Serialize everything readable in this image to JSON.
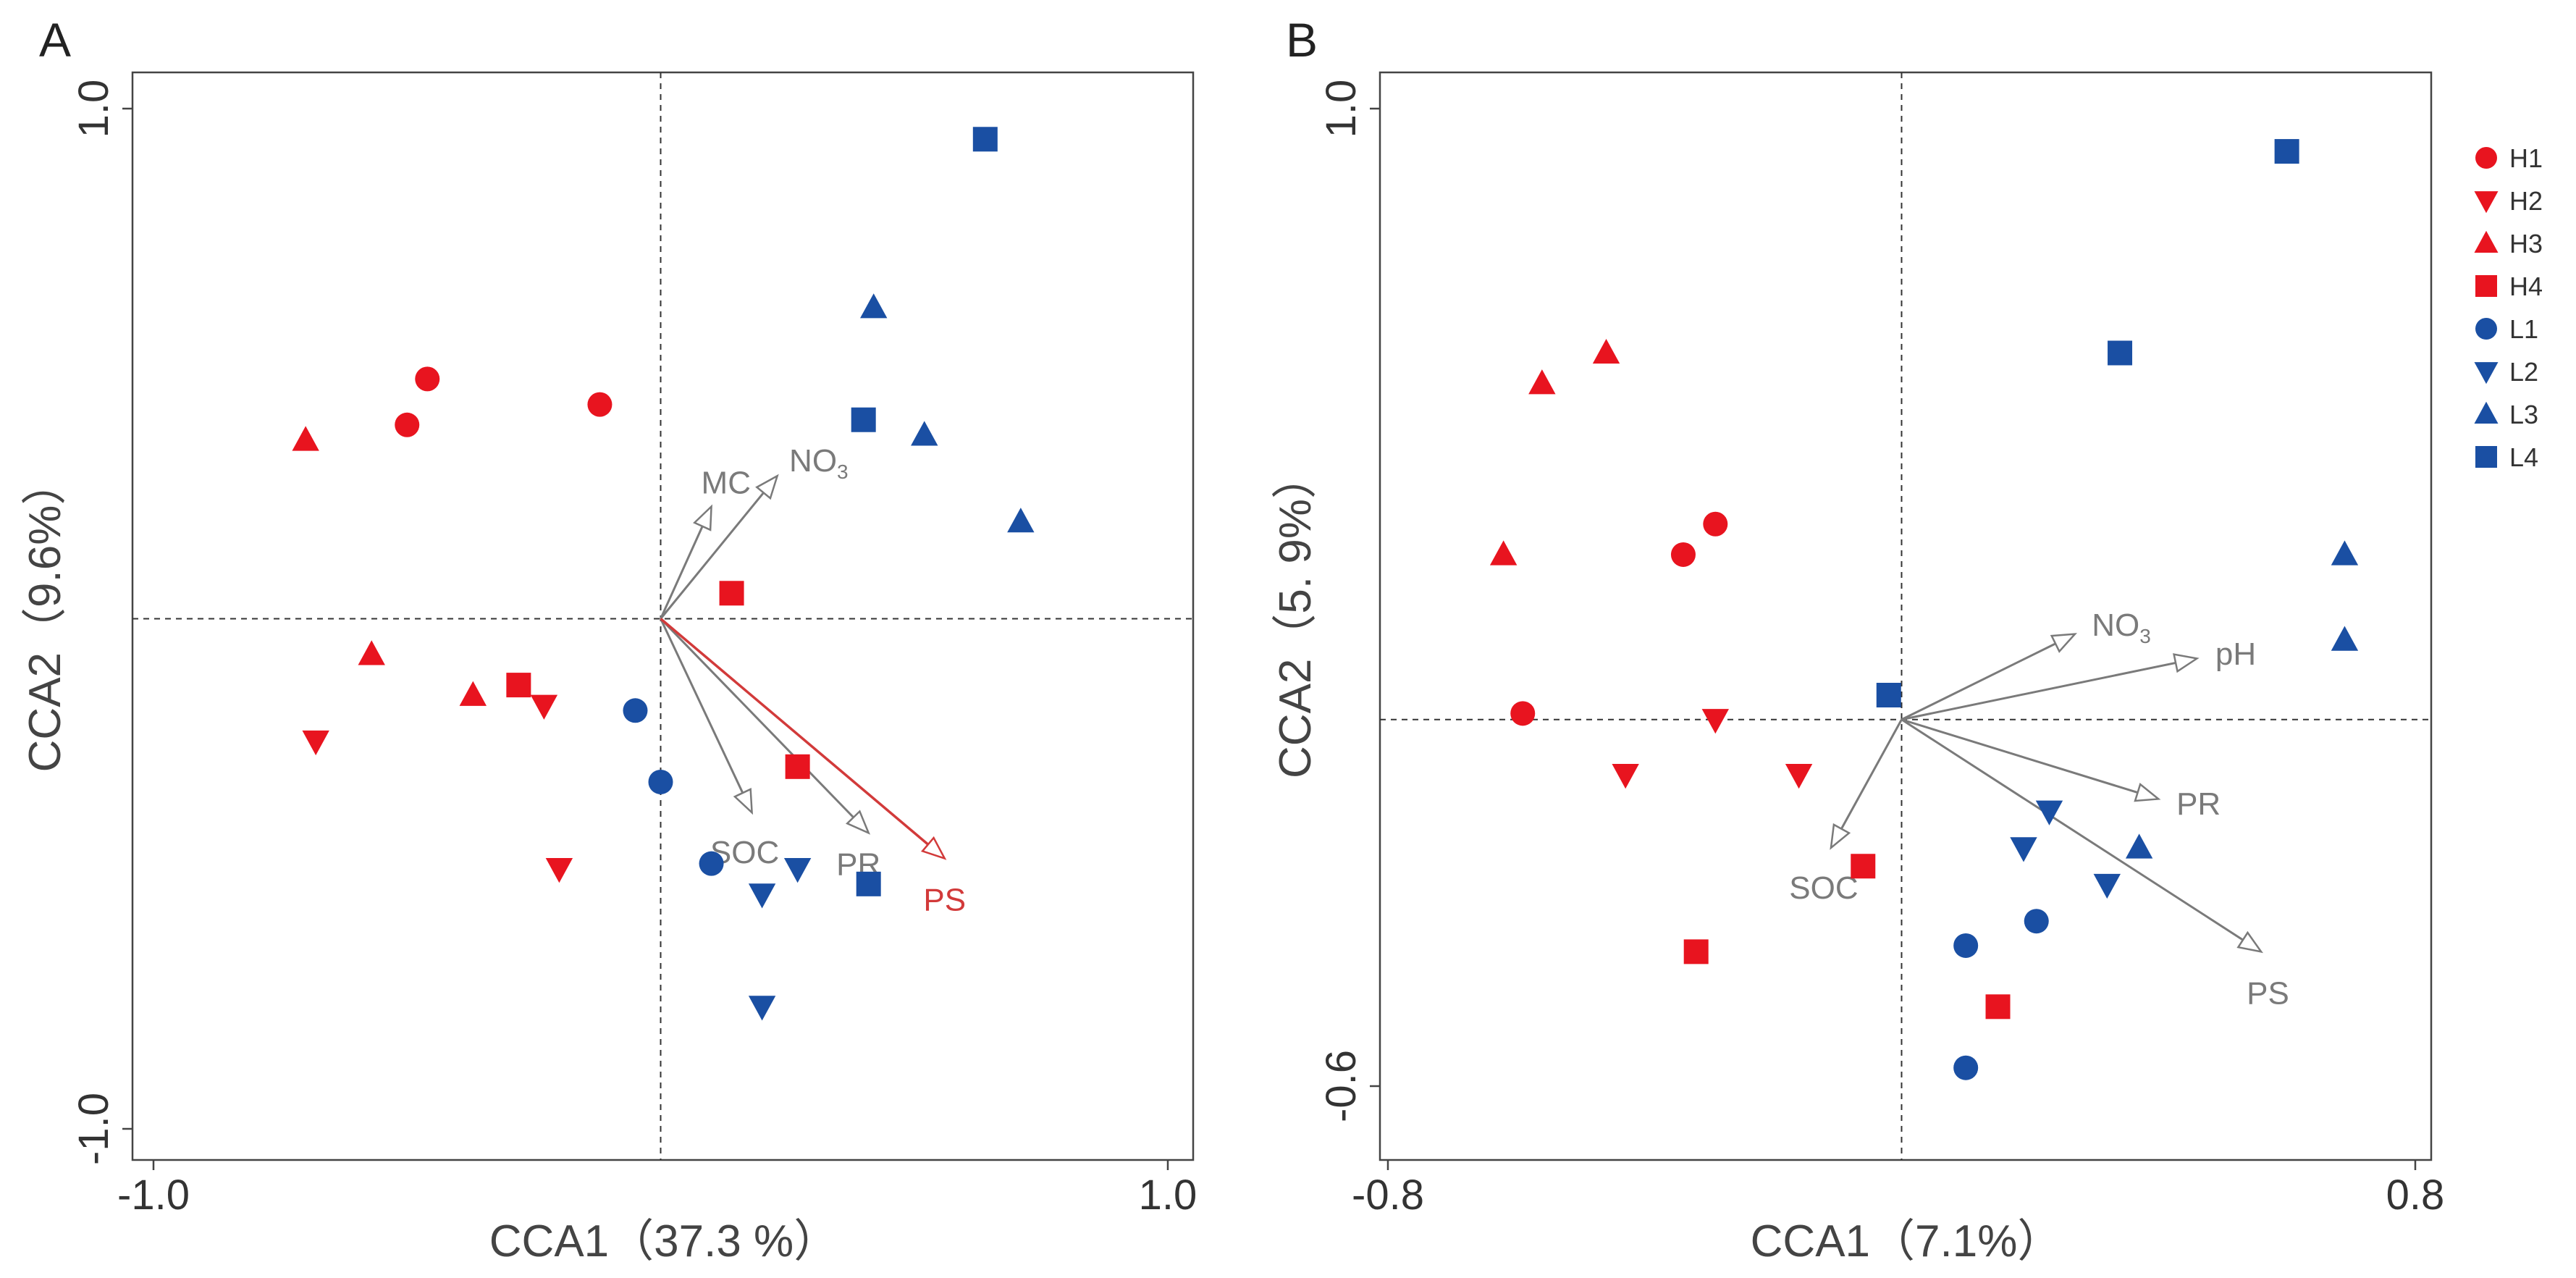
{
  "colors": {
    "H": "#e8141f",
    "L": "#1a4fa3",
    "arrow": "#7a7a7a",
    "arrow_highlight": "#d23a3a",
    "frame": "#444444"
  },
  "legend": {
    "entries": [
      {
        "label": "H1",
        "group": "H",
        "shape": "circle"
      },
      {
        "label": "H2",
        "group": "H",
        "shape": "triangle-down"
      },
      {
        "label": "H3",
        "group": "H",
        "shape": "triangle-up"
      },
      {
        "label": "H4",
        "group": "H",
        "shape": "square"
      },
      {
        "label": "L1",
        "group": "L",
        "shape": "circle"
      },
      {
        "label": "L2",
        "group": "L",
        "shape": "triangle-down"
      },
      {
        "label": "L3",
        "group": "L",
        "shape": "triangle-up"
      },
      {
        "label": "L4",
        "group": "L",
        "shape": "square"
      }
    ]
  },
  "chart_data": [
    {
      "type": "scatter",
      "panel": "A",
      "xlabel": "CCA1（37.3 %）",
      "ylabel": "CCA2（9.6%）",
      "xlim": [
        -1.0,
        1.0
      ],
      "ylim": [
        -1.0,
        1.0
      ],
      "xticks": [
        "-1.0",
        "1.0"
      ],
      "yticks": [
        "-1.0",
        "1.0"
      ],
      "origin_lines": "dashed",
      "series": [
        {
          "name": "H1",
          "points": [
            [
              -0.5,
              0.38
            ],
            [
              -0.46,
              0.47
            ],
            [
              -0.12,
              0.42
            ]
          ]
        },
        {
          "name": "H2",
          "points": [
            [
              -0.68,
              -0.24
            ],
            [
              -0.23,
              -0.17
            ],
            [
              -0.2,
              -0.49
            ]
          ]
        },
        {
          "name": "H3",
          "points": [
            [
              -0.7,
              0.35
            ],
            [
              -0.57,
              -0.07
            ],
            [
              -0.37,
              -0.15
            ]
          ]
        },
        {
          "name": "H4",
          "points": [
            [
              -0.28,
              -0.13
            ],
            [
              0.14,
              0.05
            ],
            [
              0.27,
              -0.29
            ]
          ]
        },
        {
          "name": "L1",
          "points": [
            [
              -0.05,
              -0.18
            ],
            [
              0.0,
              -0.32
            ],
            [
              0.1,
              -0.48
            ]
          ]
        },
        {
          "name": "L2",
          "points": [
            [
              0.2,
              -0.54
            ],
            [
              0.27,
              -0.49
            ],
            [
              0.2,
              -0.76
            ]
          ]
        },
        {
          "name": "L3",
          "points": [
            [
              0.42,
              0.61
            ],
            [
              0.52,
              0.36
            ],
            [
              0.71,
              0.19
            ]
          ]
        },
        {
          "name": "L4",
          "points": [
            [
              0.64,
              0.94
            ],
            [
              0.4,
              0.39
            ],
            [
              0.41,
              -0.52
            ]
          ]
        }
      ],
      "arrows": [
        {
          "label": "MC",
          "x": 0.1,
          "y": 0.22,
          "highlight": false
        },
        {
          "label": "NO3",
          "x": 0.23,
          "y": 0.28,
          "highlight": false
        },
        {
          "label": "SOC",
          "x": 0.18,
          "y": -0.38,
          "highlight": false
        },
        {
          "label": "PR",
          "x": 0.41,
          "y": -0.42,
          "highlight": false
        },
        {
          "label": "PS",
          "x": 0.56,
          "y": -0.47,
          "highlight": true
        }
      ]
    },
    {
      "type": "scatter",
      "panel": "B",
      "xlabel": "CCA1（7.1%）",
      "ylabel": "CCA2（5. 9%）",
      "xlim": [
        -0.8,
        0.8
      ],
      "ylim": [
        -0.6,
        1.0
      ],
      "xticks": [
        "-0.8",
        "0.8"
      ],
      "yticks": [
        "-0.6",
        "1.0"
      ],
      "origin_lines": "dashed",
      "series": [
        {
          "name": "H1",
          "points": [
            [
              -0.59,
              0.01
            ],
            [
              -0.34,
              0.27
            ],
            [
              -0.29,
              0.32
            ]
          ]
        },
        {
          "name": "H2",
          "points": [
            [
              -0.29,
              0.0
            ],
            [
              -0.43,
              -0.09
            ],
            [
              -0.16,
              -0.09
            ]
          ]
        },
        {
          "name": "H3",
          "points": [
            [
              -0.56,
              0.55
            ],
            [
              -0.46,
              0.6
            ],
            [
              -0.62,
              0.27
            ]
          ]
        },
        {
          "name": "H4",
          "points": [
            [
              -0.06,
              -0.24
            ],
            [
              -0.32,
              -0.38
            ],
            [
              0.15,
              -0.47
            ]
          ]
        },
        {
          "name": "L1",
          "points": [
            [
              0.1,
              -0.37
            ],
            [
              0.21,
              -0.33
            ],
            [
              0.1,
              -0.57
            ]
          ]
        },
        {
          "name": "L2",
          "points": [
            [
              0.23,
              -0.15
            ],
            [
              0.19,
              -0.21
            ],
            [
              0.32,
              -0.27
            ]
          ]
        },
        {
          "name": "L3",
          "points": [
            [
              0.37,
              -0.21
            ],
            [
              0.69,
              0.27
            ],
            [
              0.69,
              0.13
            ]
          ]
        },
        {
          "name": "L4",
          "points": [
            [
              0.6,
              0.93
            ],
            [
              0.34,
              0.6
            ],
            [
              -0.02,
              0.04
            ]
          ]
        }
      ],
      "arrows": [
        {
          "label": "NO3",
          "x": 0.27,
          "y": 0.14,
          "highlight": false
        },
        {
          "label": "pH",
          "x": 0.46,
          "y": 0.1,
          "highlight": false
        },
        {
          "label": "PR",
          "x": 0.4,
          "y": -0.13,
          "highlight": false
        },
        {
          "label": "PS",
          "x": 0.56,
          "y": -0.38,
          "highlight": false
        },
        {
          "label": "SOC",
          "x": -0.11,
          "y": -0.21,
          "highlight": false
        }
      ]
    }
  ]
}
